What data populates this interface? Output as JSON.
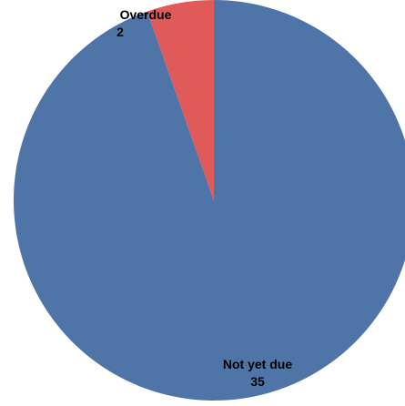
{
  "chart_data": {
    "type": "pie",
    "title": "",
    "slices": [
      {
        "label": "Not yet due",
        "value": 35,
        "color": "#4F75A8"
      },
      {
        "label": "Overdue",
        "value": 2,
        "color": "#E05A5A"
      }
    ],
    "start_angle_deg": 0,
    "direction": "clockwise"
  },
  "labels": {
    "overdue_name": "Overdue",
    "overdue_value": "2",
    "not_yet_due_name": "Not yet due",
    "not_yet_due_value": "35"
  }
}
